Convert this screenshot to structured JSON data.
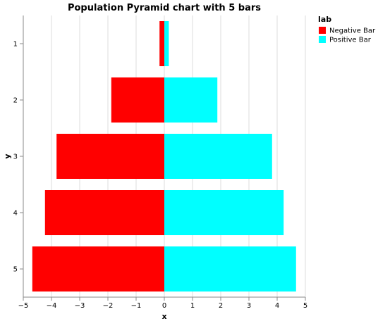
{
  "chart_data": {
    "type": "bar",
    "orientation": "horizontal",
    "title": "Population Pyramid chart with 5 bars",
    "xlabel": "x",
    "ylabel": "y",
    "xlim": [
      -5,
      5
    ],
    "x_ticks": [
      "−5",
      "−4",
      "−3",
      "−2",
      "−1",
      "0",
      "1",
      "2",
      "3",
      "4",
      "5"
    ],
    "categories": [
      "1",
      "2",
      "3",
      "4",
      "5"
    ],
    "series": [
      {
        "name": "Negative Bar",
        "color": "#ff0000",
        "values": [
          -0.17,
          -1.88,
          -3.82,
          -4.23,
          -4.68
        ]
      },
      {
        "name": "Positive Bar",
        "color": "#00ffff",
        "values": [
          0.16,
          1.88,
          3.82,
          4.23,
          4.67
        ]
      }
    ],
    "grid": true,
    "legend": {
      "title": "lab",
      "position": "top-right"
    }
  }
}
